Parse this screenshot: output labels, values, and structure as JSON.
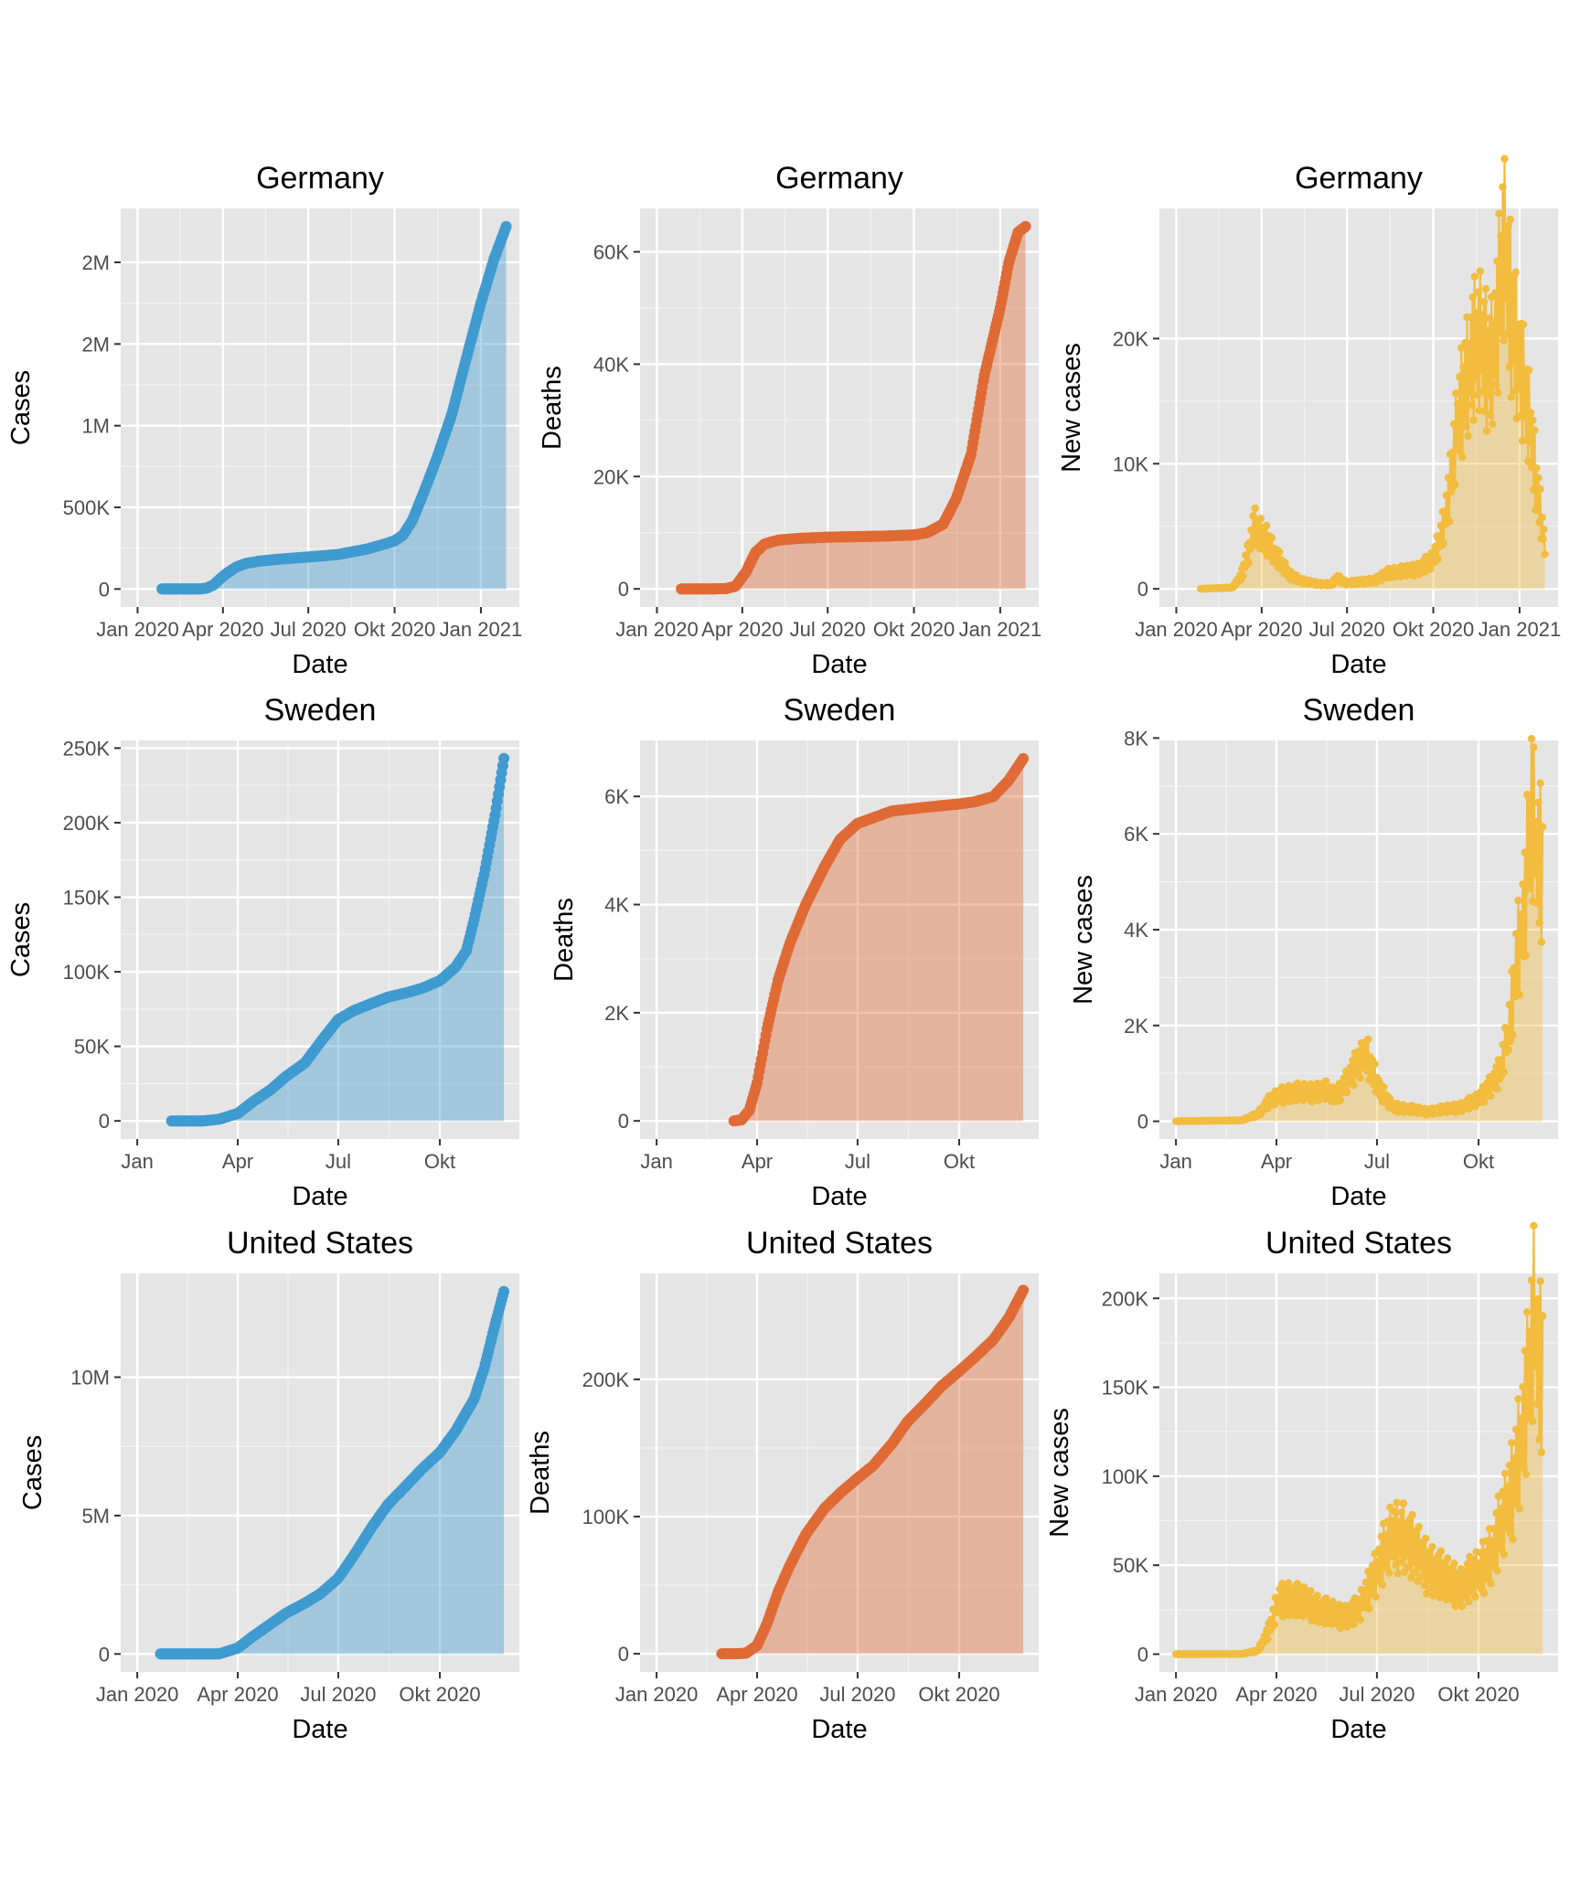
{
  "colors": {
    "cases": "#3f9bd0",
    "deaths": "#e06a35",
    "new_cases": "#f2bc3e",
    "panel_bg": "#e5e5e5",
    "grid": "#ffffff"
  },
  "chart_data": [
    {
      "type": "area",
      "title": "Germany",
      "xlabel": "Date",
      "ylabel": "Cases",
      "color_key": "cases",
      "series": [
        {
          "x": [
            "2020-01-27",
            "2020-02-15",
            "2020-03-01",
            "2020-03-08",
            "2020-03-15",
            "2020-03-22",
            "2020-03-29",
            "2020-04-05",
            "2020-04-15",
            "2020-04-25",
            "2020-05-10",
            "2020-06-01",
            "2020-07-01",
            "2020-08-01",
            "2020-09-01",
            "2020-09-20",
            "2020-10-01",
            "2020-10-10",
            "2020-10-20",
            "2020-11-01",
            "2020-11-15",
            "2020-12-01",
            "2020-12-15",
            "2021-01-01",
            "2021-01-15",
            "2021-01-28"
          ],
          "y": [
            0,
            16,
            150,
            900,
            5800,
            25000,
            62000,
            96000,
            134000,
            156000,
            171000,
            183000,
            196000,
            211000,
            244000,
            275000,
            295000,
            330000,
            420000,
            590000,
            800000,
            1070000,
            1380000,
            1750000,
            2020000,
            2220000
          ]
        }
      ],
      "yticks": [
        0,
        500000,
        1000000,
        1500000,
        2000000
      ],
      "ytick_labels": [
        "0",
        "500K",
        "1M",
        "2M",
        "2M"
      ],
      "ylim": [
        -110000,
        2330000
      ],
      "xlim": [
        "2019-12-14",
        "2021-02-11"
      ],
      "xticks": [
        "2020-01-01",
        "2020-04-01",
        "2020-07-01",
        "2020-10-01",
        "2021-01-01"
      ],
      "xtick_labels": [
        "Jan 2020",
        "Apr 2020",
        "Jul 2020",
        "Okt 2020",
        "Jan 2021"
      ],
      "style": "points"
    },
    {
      "type": "area",
      "title": "Germany",
      "xlabel": "Date",
      "ylabel": "Deaths",
      "color_key": "deaths",
      "series": [
        {
          "x": [
            "2020-01-27",
            "2020-03-01",
            "2020-03-15",
            "2020-03-25",
            "2020-04-05",
            "2020-04-15",
            "2020-04-25",
            "2020-05-10",
            "2020-06-01",
            "2020-07-01",
            "2020-08-01",
            "2020-09-01",
            "2020-10-01",
            "2020-10-15",
            "2020-11-01",
            "2020-11-15",
            "2020-12-01",
            "2020-12-15",
            "2021-01-01",
            "2021-01-10",
            "2021-01-20",
            "2021-01-28"
          ],
          "y": [
            0,
            0,
            50,
            500,
            3000,
            6500,
            8000,
            8700,
            9000,
            9200,
            9300,
            9400,
            9600,
            10000,
            11500,
            16000,
            24000,
            38000,
            50000,
            58000,
            63500,
            64500
          ]
        }
      ],
      "yticks": [
        0,
        20000,
        40000,
        60000
      ],
      "ytick_labels": [
        "0",
        "20K",
        "40K",
        "60K"
      ],
      "ylim": [
        -3225,
        67725
      ],
      "xlim": [
        "2019-12-14",
        "2021-02-11"
      ],
      "xticks": [
        "2020-01-01",
        "2020-04-01",
        "2020-07-01",
        "2020-10-01",
        "2021-01-01"
      ],
      "xtick_labels": [
        "Jan 2020",
        "Apr 2020",
        "Jul 2020",
        "Okt 2020",
        "Jan 2021"
      ],
      "style": "points"
    },
    {
      "type": "area",
      "title": "Germany",
      "xlabel": "Date",
      "ylabel": "New cases",
      "color_key": "new_cases",
      "series": [
        {
          "x": [
            "2020-01-27",
            "2020-03-01",
            "2020-03-10",
            "2020-03-18",
            "2020-03-24",
            "2020-03-28",
            "2020-04-02",
            "2020-04-08",
            "2020-04-15",
            "2020-04-22",
            "2020-05-01",
            "2020-05-15",
            "2020-06-01",
            "2020-06-15",
            "2020-06-20",
            "2020-07-01",
            "2020-08-01",
            "2020-08-15",
            "2020-09-01",
            "2020-09-15",
            "2020-10-01",
            "2020-10-10",
            "2020-10-18",
            "2020-10-25",
            "2020-11-01",
            "2020-11-10",
            "2020-11-20",
            "2020-12-01",
            "2020-12-08",
            "2020-12-15",
            "2020-12-20",
            "2020-12-28",
            "2021-01-05",
            "2021-01-12",
            "2021-01-20",
            "2021-01-28"
          ],
          "y": [
            0,
            100,
            1000,
            3000,
            5000,
            4500,
            4200,
            3800,
            2800,
            2000,
            1100,
            600,
            400,
            350,
            900,
            450,
            700,
            1300,
            1400,
            1600,
            2300,
            4500,
            7500,
            12000,
            15500,
            18500,
            19500,
            18000,
            21000,
            27000,
            24000,
            20000,
            16000,
            13000,
            8000,
            3500
          ]
        }
      ],
      "yticks": [
        0,
        10000,
        20000
      ],
      "ytick_labels": [
        "0",
        "10K",
        "20K"
      ],
      "ylim": [
        -1448,
        30400
      ],
      "xlim": [
        "2019-12-14",
        "2021-02-11"
      ],
      "xticks": [
        "2020-01-01",
        "2020-04-01",
        "2020-07-01",
        "2020-10-01",
        "2021-01-01"
      ],
      "xtick_labels": [
        "Jan 2020",
        "Apr 2020",
        "Jul 2020",
        "Okt 2020",
        "Jan 2021"
      ],
      "style": "spiky"
    },
    {
      "type": "area",
      "title": "Sweden",
      "xlabel": "Date",
      "ylabel": "Cases",
      "color_key": "cases",
      "series": [
        {
          "x": [
            "2020-02-01",
            "2020-03-01",
            "2020-03-15",
            "2020-04-01",
            "2020-04-15",
            "2020-05-01",
            "2020-05-15",
            "2020-06-01",
            "2020-06-15",
            "2020-07-01",
            "2020-07-15",
            "2020-08-01",
            "2020-08-15",
            "2020-09-01",
            "2020-09-15",
            "2020-10-01",
            "2020-10-15",
            "2020-10-25",
            "2020-11-01",
            "2020-11-10",
            "2020-11-20",
            "2020-11-28"
          ],
          "y": [
            0,
            15,
            1100,
            5000,
            13000,
            21000,
            30000,
            39000,
            53000,
            68000,
            74000,
            79000,
            83000,
            86000,
            89000,
            94000,
            103000,
            114000,
            135000,
            165000,
            205000,
            243000
          ]
        }
      ],
      "yticks": [
        0,
        50000,
        100000,
        150000,
        200000,
        250000
      ],
      "ytick_labels": [
        "0",
        "50K",
        "100K",
        "150K",
        "200K",
        "250K"
      ],
      "ylim": [
        -12150,
        255150
      ],
      "xlim": [
        "2019-12-17",
        "2020-12-12"
      ],
      "xticks": [
        "2020-01-01",
        "2020-04-01",
        "2020-07-01",
        "2020-10-01"
      ],
      "xtick_labels": [
        "Jan",
        "Apr",
        "Jul",
        "Okt"
      ],
      "style": "points"
    },
    {
      "type": "area",
      "title": "Sweden",
      "xlabel": "Date",
      "ylabel": "Deaths",
      "color_key": "deaths",
      "series": [
        {
          "x": [
            "2020-03-11",
            "2020-03-18",
            "2020-03-25",
            "2020-04-01",
            "2020-04-10",
            "2020-04-20",
            "2020-05-01",
            "2020-05-15",
            "2020-06-01",
            "2020-06-15",
            "2020-07-01",
            "2020-08-01",
            "2020-09-01",
            "2020-10-01",
            "2020-10-15",
            "2020-11-01",
            "2020-11-15",
            "2020-11-28"
          ],
          "y": [
            0,
            20,
            200,
            700,
            1700,
            2600,
            3300,
            4000,
            4700,
            5200,
            5500,
            5730,
            5800,
            5860,
            5900,
            6000,
            6300,
            6700
          ]
        }
      ],
      "yticks": [
        0,
        2000,
        4000,
        6000
      ],
      "ytick_labels": [
        "0",
        "2K",
        "4K",
        "6K"
      ],
      "ylim": [
        -335,
        7035
      ],
      "xlim": [
        "2019-12-17",
        "2020-12-12"
      ],
      "xticks": [
        "2020-01-01",
        "2020-04-01",
        "2020-07-01",
        "2020-10-01"
      ],
      "xtick_labels": [
        "Jan",
        "Apr",
        "Jul",
        "Okt"
      ],
      "style": "points"
    },
    {
      "type": "area",
      "title": "Sweden",
      "xlabel": "Date",
      "ylabel": "New cases",
      "color_key": "new_cases",
      "series": [
        {
          "x": [
            "2020-01-01",
            "2020-03-01",
            "2020-03-15",
            "2020-03-25",
            "2020-04-05",
            "2020-04-15",
            "2020-05-01",
            "2020-05-15",
            "2020-05-25",
            "2020-06-05",
            "2020-06-15",
            "2020-06-22",
            "2020-06-28",
            "2020-07-05",
            "2020-07-15",
            "2020-08-01",
            "2020-08-15",
            "2020-09-01",
            "2020-09-15",
            "2020-10-01",
            "2020-10-10",
            "2020-10-20",
            "2020-10-28",
            "2020-11-05",
            "2020-11-12",
            "2020-11-18",
            "2020-11-22",
            "2020-11-28"
          ],
          "y": [
            0,
            20,
            150,
            400,
            550,
            600,
            600,
            650,
            500,
            900,
            1200,
            1400,
            1000,
            600,
            300,
            250,
            200,
            250,
            300,
            450,
            700,
            1000,
            1800,
            3500,
            4500,
            6500,
            5500,
            5500
          ]
        }
      ],
      "yticks": [
        0,
        2000,
        4000,
        6000,
        8000
      ],
      "ytick_labels": [
        "0",
        "2K",
        "4K",
        "6K",
        "8K"
      ],
      "ylim": [
        -370,
        7950
      ],
      "xlim": [
        "2019-12-17",
        "2020-12-12"
      ],
      "xticks": [
        "2020-01-01",
        "2020-04-01",
        "2020-07-01",
        "2020-10-01"
      ],
      "xtick_labels": [
        "Jan",
        "Apr",
        "Jul",
        "Okt"
      ],
      "style": "spiky"
    },
    {
      "type": "area",
      "title": "United States",
      "xlabel": "Date",
      "ylabel": "Cases",
      "color_key": "cases",
      "series": [
        {
          "x": [
            "2020-01-22",
            "2020-03-01",
            "2020-03-15",
            "2020-04-01",
            "2020-04-15",
            "2020-05-01",
            "2020-05-15",
            "2020-06-01",
            "2020-06-15",
            "2020-07-01",
            "2020-07-15",
            "2020-08-01",
            "2020-08-15",
            "2020-09-01",
            "2020-09-15",
            "2020-10-01",
            "2020-10-15",
            "2020-11-01",
            "2020-11-10",
            "2020-11-20",
            "2020-11-28"
          ],
          "y": [
            0,
            70,
            3500,
            215000,
            640000,
            1090000,
            1480000,
            1840000,
            2180000,
            2740000,
            3550000,
            4620000,
            5400000,
            6100000,
            6690000,
            7280000,
            8040000,
            9210000,
            10300000,
            11900000,
            13100000
          ]
        }
      ],
      "yticks": [
        0,
        5000000,
        10000000
      ],
      "ytick_labels": [
        "0",
        "5M",
        "10M"
      ],
      "ylim": [
        -650000,
        13750000
      ],
      "xlim": [
        "2019-12-17",
        "2020-12-12"
      ],
      "xticks": [
        "2020-01-01",
        "2020-04-01",
        "2020-07-01",
        "2020-10-01"
      ],
      "xtick_labels": [
        "Jan 2020",
        "Apr 2020",
        "Jul 2020",
        "Okt 2020"
      ],
      "style": "points"
    },
    {
      "type": "area",
      "title": "United States",
      "xlabel": "Date",
      "ylabel": "Deaths",
      "color_key": "deaths",
      "series": [
        {
          "x": [
            "2020-02-29",
            "2020-03-15",
            "2020-03-22",
            "2020-04-01",
            "2020-04-10",
            "2020-04-20",
            "2020-05-01",
            "2020-05-15",
            "2020-06-01",
            "2020-06-15",
            "2020-07-01",
            "2020-07-15",
            "2020-08-01",
            "2020-08-15",
            "2020-09-01",
            "2020-09-15",
            "2020-10-01",
            "2020-10-15",
            "2020-11-01",
            "2020-11-15",
            "2020-11-28"
          ],
          "y": [
            0,
            60,
            500,
            6000,
            22000,
            45000,
            65000,
            87000,
            106000,
            117000,
            128000,
            137000,
            153000,
            169000,
            183000,
            195000,
            206000,
            216000,
            229000,
            245000,
            265000
          ]
        }
      ],
      "yticks": [
        0,
        100000,
        200000
      ],
      "ytick_labels": [
        "0",
        "100K",
        "200K"
      ],
      "ylim": [
        -13250,
        277250
      ],
      "xlim": [
        "2019-12-17",
        "2020-12-12"
      ],
      "xticks": [
        "2020-01-01",
        "2020-04-01",
        "2020-07-01",
        "2020-10-01"
      ],
      "xtick_labels": [
        "Jan 2020",
        "Apr 2020",
        "Jul 2020",
        "Okt 2020"
      ],
      "style": "points"
    },
    {
      "type": "area",
      "title": "United States",
      "xlabel": "Date",
      "ylabel": "New cases",
      "color_key": "new_cases",
      "series": [
        {
          "x": [
            "2020-01-01",
            "2020-03-01",
            "2020-03-15",
            "2020-03-25",
            "2020-04-03",
            "2020-04-10",
            "2020-04-20",
            "2020-05-01",
            "2020-05-15",
            "2020-06-01",
            "2020-06-15",
            "2020-06-25",
            "2020-07-05",
            "2020-07-15",
            "2020-07-25",
            "2020-08-01",
            "2020-08-15",
            "2020-09-01",
            "2020-09-15",
            "2020-10-01",
            "2020-10-15",
            "2020-10-25",
            "2020-11-01",
            "2020-11-10",
            "2020-11-15",
            "2020-11-20",
            "2020-11-25",
            "2020-11-28"
          ],
          "y": [
            0,
            100,
            2000,
            13000,
            30000,
            32000,
            30000,
            28000,
            24000,
            21000,
            25000,
            39000,
            53000,
            66000,
            67000,
            60000,
            50000,
            42000,
            38000,
            45000,
            60000,
            78000,
            95000,
            128000,
            150000,
            185000,
            160000,
            170000
          ]
        }
      ],
      "yticks": [
        0,
        50000,
        100000,
        150000,
        200000
      ],
      "ytick_labels": [
        "0",
        "50K",
        "100K",
        "150K",
        "200K"
      ],
      "ylim": [
        -10000,
        214000
      ],
      "xlim": [
        "2019-12-17",
        "2020-12-12"
      ],
      "xticks": [
        "2020-01-01",
        "2020-04-01",
        "2020-07-01",
        "2020-10-01"
      ],
      "xtick_labels": [
        "Jan 2020",
        "Apr 2020",
        "Jul 2020",
        "Okt 2020"
      ],
      "style": "spiky"
    }
  ]
}
